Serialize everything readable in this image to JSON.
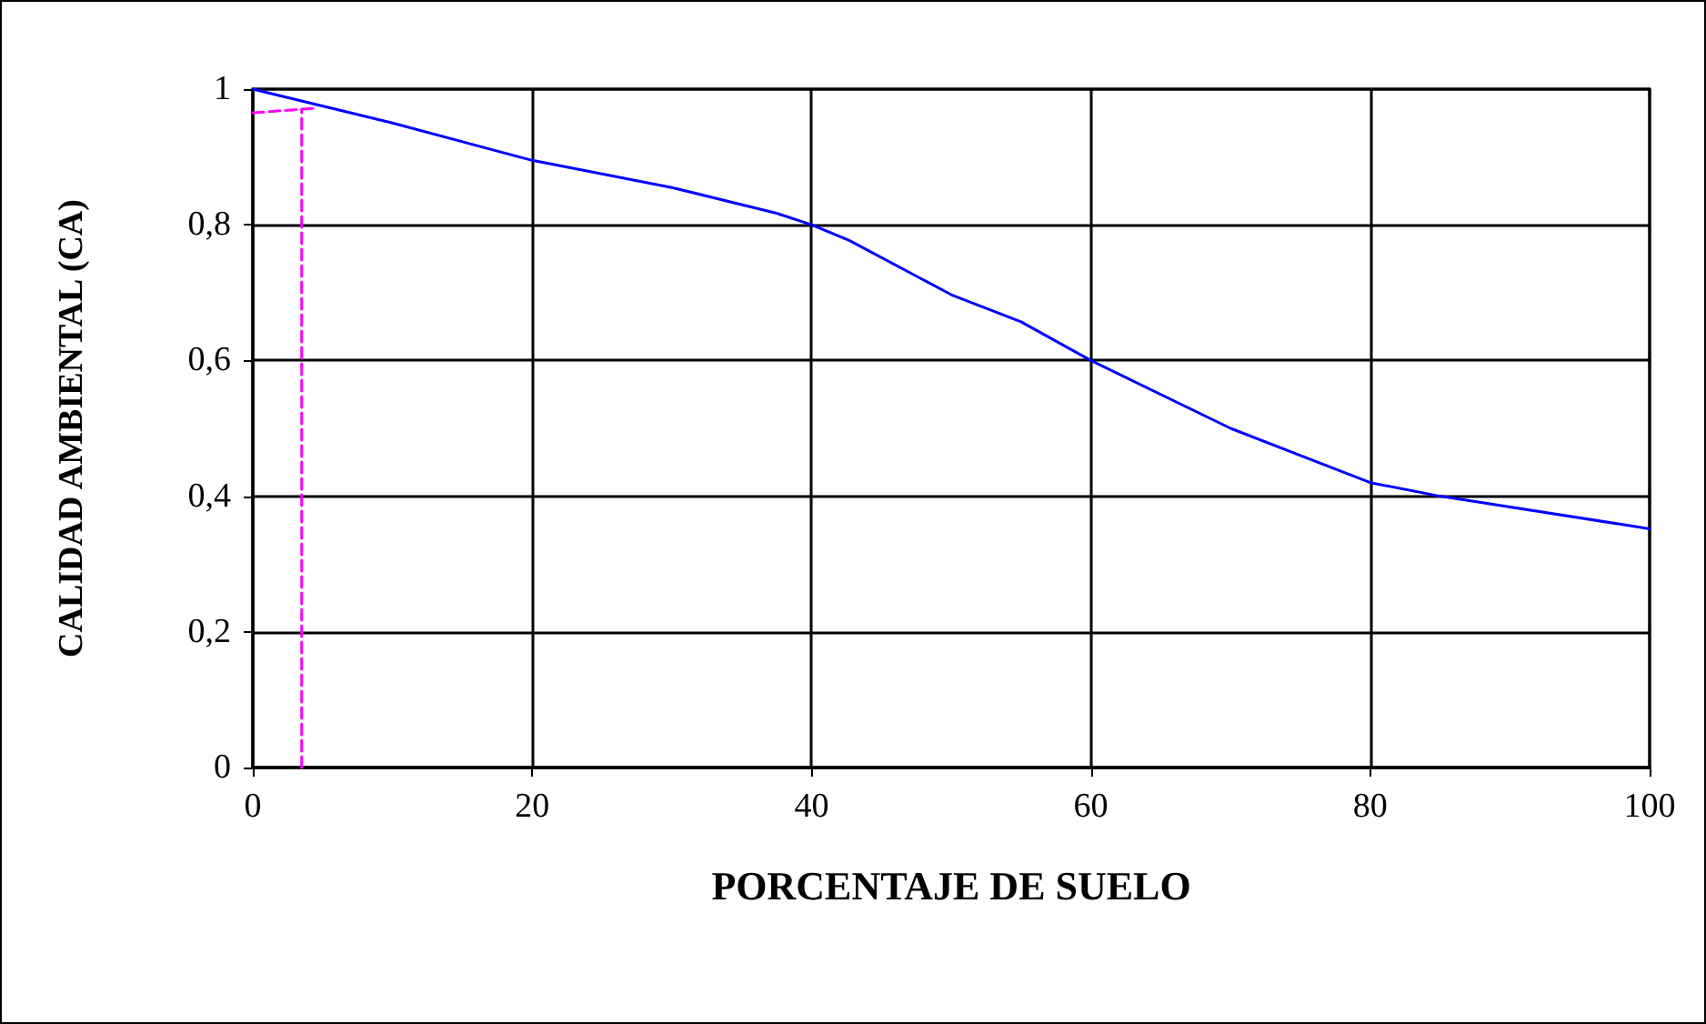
{
  "chart_data": {
    "type": "line",
    "xlabel": "PORCENTAJE DE SUELO",
    "ylabel": "CALIDAD AMBIENTAL (CA)",
    "series": [
      {
        "color": "#0000ff",
        "x": [
          0,
          10,
          20,
          30,
          37.5,
          40,
          42.7,
          50,
          55,
          60,
          70,
          75,
          80,
          85,
          100
        ],
        "values": [
          1,
          0.95,
          0.895,
          0.855,
          0.817,
          0.8,
          0.777,
          0.697,
          0.657,
          0.6,
          0.5,
          0.46,
          0.42,
          0.4,
          0.352
        ]
      },
      {
        "color": "#ff00ff",
        "line_style": "dashed",
        "x": [
          3.5,
          3.5
        ],
        "values": [
          0,
          0.97
        ]
      },
      {
        "color": "#ff00ff",
        "line_style": "dashed",
        "x": [
          0,
          4.5
        ],
        "values": [
          0.965,
          0.972
        ]
      }
    ],
    "xlim": [
      0,
      100
    ],
    "xticks": [
      0,
      20,
      40,
      60,
      80,
      100
    ],
    "ylim": [
      0,
      1
    ],
    "yticks": [
      0,
      {
        "value": 0.2,
        "label": "0,2"
      },
      {
        "value": 0.4,
        "label": "0,4"
      },
      {
        "value": 0.6,
        "label": "0,6"
      },
      {
        "value": 0.8,
        "label": "0,8"
      },
      1
    ],
    "grid": true,
    "marker": "none",
    "line_style": "solid"
  }
}
